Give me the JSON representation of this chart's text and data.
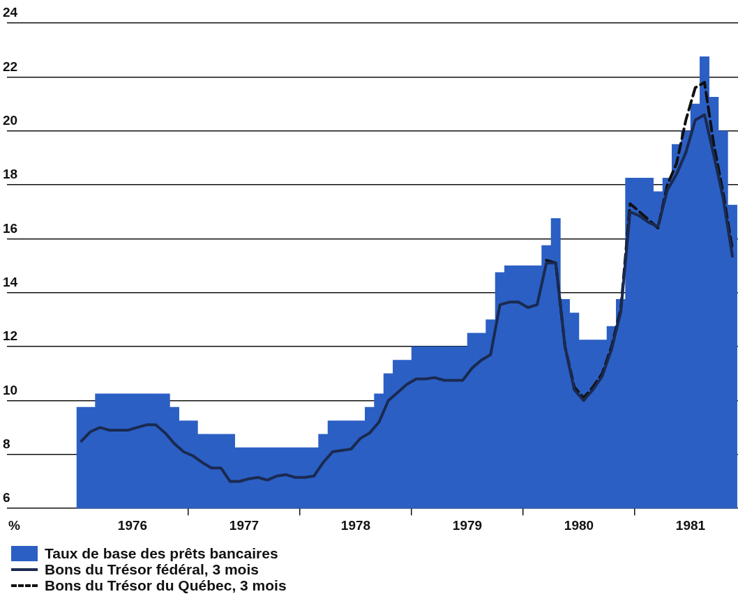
{
  "chart_data": {
    "type": "bar",
    "annotations": [
      "%"
    ],
    "legend": "bottom",
    "grid": "y",
    "marker": "none",
    "xlim": [
      1975.375,
      1981.925
    ],
    "ylim": [
      6,
      24
    ],
    "xticks": [
      {
        "value": 1976.5,
        "label": "1976"
      },
      {
        "value": 1977,
        "label": null
      },
      {
        "value": 1977.5,
        "label": "1977"
      },
      {
        "value": 1978,
        "label": null
      },
      {
        "value": 1978.5,
        "label": "1978"
      },
      {
        "value": 1979,
        "label": null
      },
      {
        "value": 1979.5,
        "label": "1979"
      },
      {
        "value": 1980,
        "label": null
      },
      {
        "value": 1980.5,
        "label": "1980"
      },
      {
        "value": 1981,
        "label": null
      },
      {
        "value": 1981.5,
        "label": "1981"
      }
    ],
    "yticks": [
      6,
      8,
      10,
      12,
      14,
      16,
      18,
      20,
      22,
      24
    ],
    "x": [
      1976.042,
      1976.125,
      1976.208,
      1976.292,
      1976.375,
      1976.458,
      1976.542,
      1976.625,
      1976.708,
      1976.792,
      1976.875,
      1976.958,
      1977.042,
      1977.125,
      1977.208,
      1977.292,
      1977.375,
      1977.458,
      1977.542,
      1977.625,
      1977.708,
      1977.792,
      1977.875,
      1977.958,
      1978.042,
      1978.125,
      1978.208,
      1978.292,
      1978.375,
      1978.458,
      1978.542,
      1978.625,
      1978.708,
      1978.792,
      1978.875,
      1978.958,
      1979.042,
      1979.125,
      1979.208,
      1979.292,
      1979.375,
      1979.458,
      1979.542,
      1979.625,
      1979.708,
      1979.792,
      1979.875,
      1979.958,
      1980.042,
      1980.125,
      1980.208,
      1980.292,
      1980.375,
      1980.458,
      1980.542,
      1980.625,
      1980.708,
      1980.792,
      1980.875,
      1980.958,
      1981.042,
      1981.125,
      1981.208,
      1981.292,
      1981.375,
      1981.458,
      1981.542,
      1981.625,
      1981.708,
      1981.792,
      1981.875
    ],
    "series": [
      {
        "name": "Taux de base des prêts bancaires",
        "color": "#2b5fc4",
        "values": [
          9.75,
          9.75,
          10.25,
          10.25,
          10.25,
          10.25,
          10.25,
          10.25,
          10.25,
          10.25,
          9.75,
          9.25,
          9.25,
          8.75,
          8.75,
          8.75,
          8.75,
          8.25,
          8.25,
          8.25,
          8.25,
          8.25,
          8.25,
          8.25,
          8.25,
          8.25,
          8.75,
          9.25,
          9.25,
          9.25,
          9.25,
          9.75,
          10.25,
          11.0,
          11.5,
          11.5,
          12,
          12,
          12,
          12,
          12,
          12,
          12.5,
          12.5,
          13,
          14.75,
          15,
          15,
          15,
          15,
          15.75,
          16.75,
          13.75,
          13.25,
          12.25,
          12.25,
          12.25,
          12.75,
          13.75,
          18.25,
          18.25,
          18.25,
          17.75,
          18.25,
          19.5,
          20,
          21,
          22.75,
          21.25,
          20,
          17.25
        ]
      },
      {
        "name": "Bons du Trésor fédéral, 3 mois",
        "type": "line",
        "line_style": "solid",
        "color": "#1a2a50",
        "values": [
          8.5,
          8.85,
          9.0,
          8.9,
          8.9,
          8.9,
          9.0,
          9.1,
          9.1,
          8.8,
          8.4,
          8.1,
          7.95,
          7.7,
          7.5,
          7.5,
          7.0,
          7.0,
          7.1,
          7.15,
          7.05,
          7.2,
          7.25,
          7.15,
          7.15,
          7.2,
          7.7,
          8.1,
          8.15,
          8.2,
          8.6,
          8.8,
          9.2,
          10.0,
          10.3,
          10.6,
          10.8,
          10.8,
          10.85,
          10.75,
          10.75,
          10.75,
          11.2,
          11.5,
          11.7,
          13.55,
          13.65,
          13.65,
          13.45,
          13.55,
          15.1,
          15.1,
          12.0,
          10.4,
          10.0,
          10.4,
          10.9,
          11.9,
          13.3,
          17.0,
          16.85,
          16.6,
          16.45,
          17.8,
          18.4,
          19.2,
          20.4,
          20.6,
          19.1,
          17.5,
          15.35
        ]
      },
      {
        "name": "Bons du Trésor du Québec, 3 mois",
        "type": "line",
        "line_style": "dashed",
        "color": "#111111",
        "values": [
          null,
          null,
          null,
          null,
          null,
          null,
          null,
          null,
          null,
          null,
          null,
          null,
          null,
          null,
          null,
          null,
          null,
          null,
          null,
          null,
          null,
          null,
          null,
          null,
          null,
          null,
          null,
          null,
          null,
          null,
          null,
          null,
          null,
          null,
          null,
          null,
          null,
          null,
          null,
          null,
          null,
          null,
          null,
          null,
          null,
          null,
          null,
          null,
          null,
          null,
          15.2,
          15.1,
          12.0,
          10.5,
          10.1,
          10.5,
          11.0,
          12.0,
          13.4,
          17.3,
          17.0,
          16.7,
          16.4,
          18.0,
          18.8,
          20.4,
          21.6,
          21.8,
          19.5,
          17.7,
          15.6
        ]
      }
    ]
  }
}
